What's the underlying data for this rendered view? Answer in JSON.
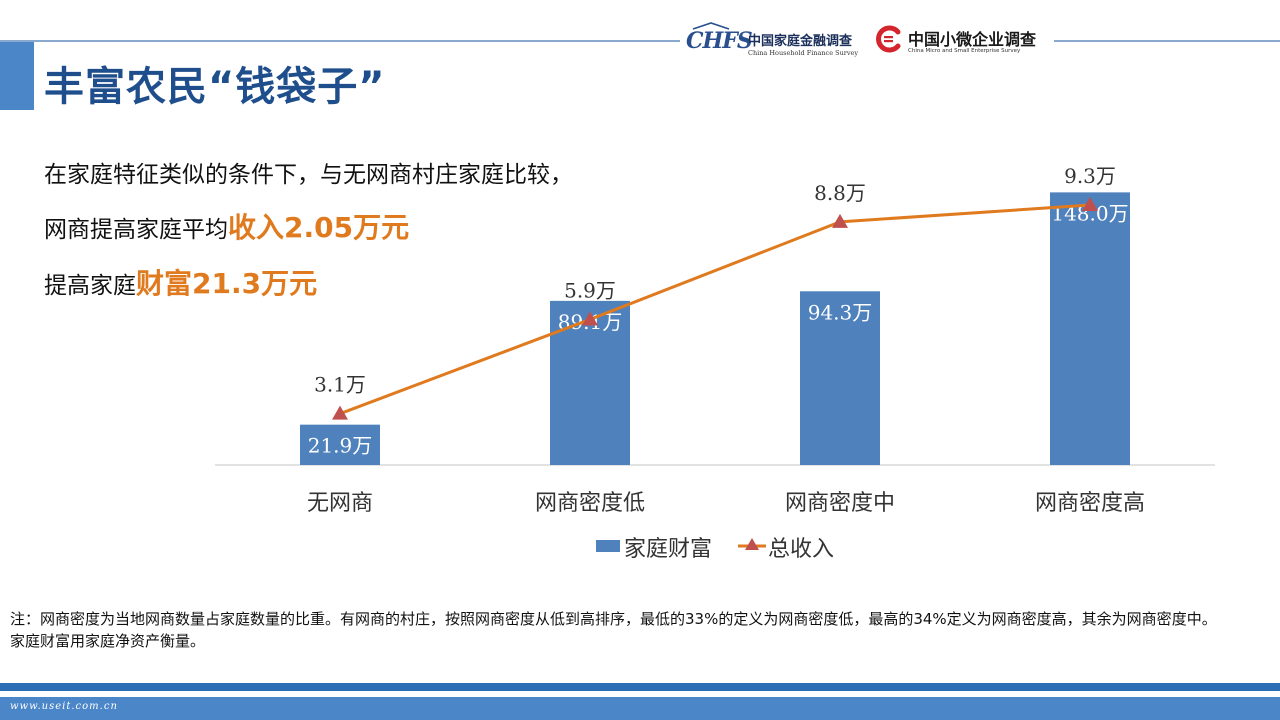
{
  "header": {
    "title": "丰富农民“钱袋子”",
    "logo1": {
      "mark": "CHFS",
      "cn": "中国家庭金融调查",
      "en": "China Household Finance Survey"
    },
    "logo2": {
      "cn": "中国小微企业调查",
      "en": "China Micro and Small Enterprise Survey"
    }
  },
  "intro": {
    "line1": "在家庭特征类似的条件下，与无网商村庄家庭比较，",
    "line2_prefix": "网商提高家庭平均",
    "line2_highlight": "收入2.05万元",
    "line3_prefix": "提高家庭",
    "line3_highlight": "财富21.3万元"
  },
  "chart_data": {
    "type": "bar",
    "categories": [
      "无网商",
      "网商密度低",
      "网商密度中",
      "网商密度高"
    ],
    "series": [
      {
        "name": "家庭财富",
        "type": "bar",
        "values": [
          21.9,
          89.1,
          94.3,
          148.0
        ],
        "labels": [
          "21.9万",
          "89.1万",
          "94.3万",
          "148.0万"
        ],
        "color": "#4f81bd"
      },
      {
        "name": "总收入",
        "type": "line",
        "values": [
          3.1,
          5.9,
          8.8,
          9.3
        ],
        "labels": [
          "3.1万",
          "5.9万",
          "8.8万",
          "9.3万"
        ],
        "color": "#e07a1e"
      }
    ],
    "legend": "bottom",
    "grid": false
  },
  "note": {
    "line1": "注：网商密度为当地网商数量占家庭数量的比重。有网商的村庄，按照网商密度从低到高排序，最低的33%的定义为网商密度低，最高的34%定义为网商密度高，其余为网商密度中。",
    "line2": "家庭财富用家庭净资产衡量。"
  },
  "footer": {
    "url": "www.useit.com.cn"
  },
  "colors": {
    "accent": "#4a86c8",
    "title": "#1f4e8c",
    "highlight": "#e07a1e"
  }
}
